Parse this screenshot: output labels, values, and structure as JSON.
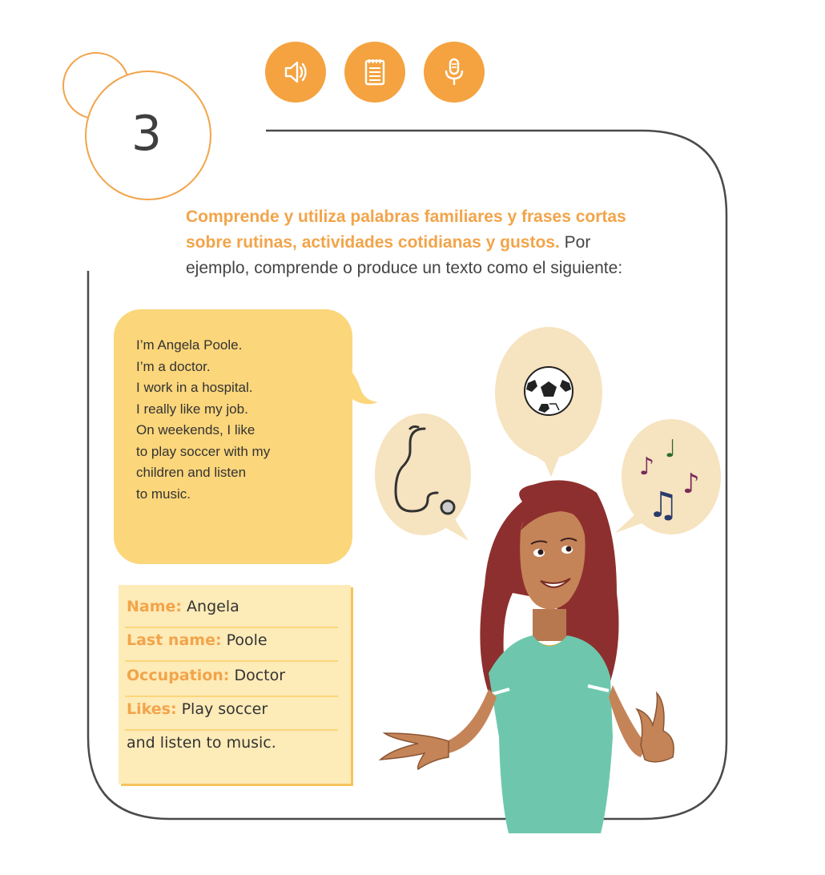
{
  "section": {
    "number": "3"
  },
  "icons": [
    {
      "name": "speaker-icon"
    },
    {
      "name": "notepad-icon"
    },
    {
      "name": "microphone-icon"
    }
  ],
  "descriptor": {
    "highlight_line1": "Comprende y utiliza palabras familiares y frases cortas",
    "highlight_line2": "sobre rutinas, actividades cotidianas y gustos.",
    "rest_line2": " Por",
    "line3": "ejemplo, comprende o produce un texto como el siguiente:"
  },
  "speech": {
    "lines": [
      "I’m Angela Poole.",
      "I’m a doctor.",
      "I work in a hospital.",
      "I really like my job.",
      "On weekends, I like",
      "to play soccer with my",
      "children and listen",
      "to music."
    ]
  },
  "profile": {
    "name_label": "Name:",
    "name_value": " Angela",
    "last_name_label": "Last name:",
    "last_name_value": " Poole",
    "occupation_label": "Occupation:",
    "occupation_value": " Doctor",
    "likes_label": "Likes:",
    "likes_value_line1": " Play soccer",
    "likes_value_line2": "and listen to music."
  },
  "colors": {
    "accent_orange": "#f2a44a",
    "bubble_yellow": "#fbd67b",
    "card_yellow": "#fdebb8",
    "thought_bubble": "#f6e3bf"
  }
}
